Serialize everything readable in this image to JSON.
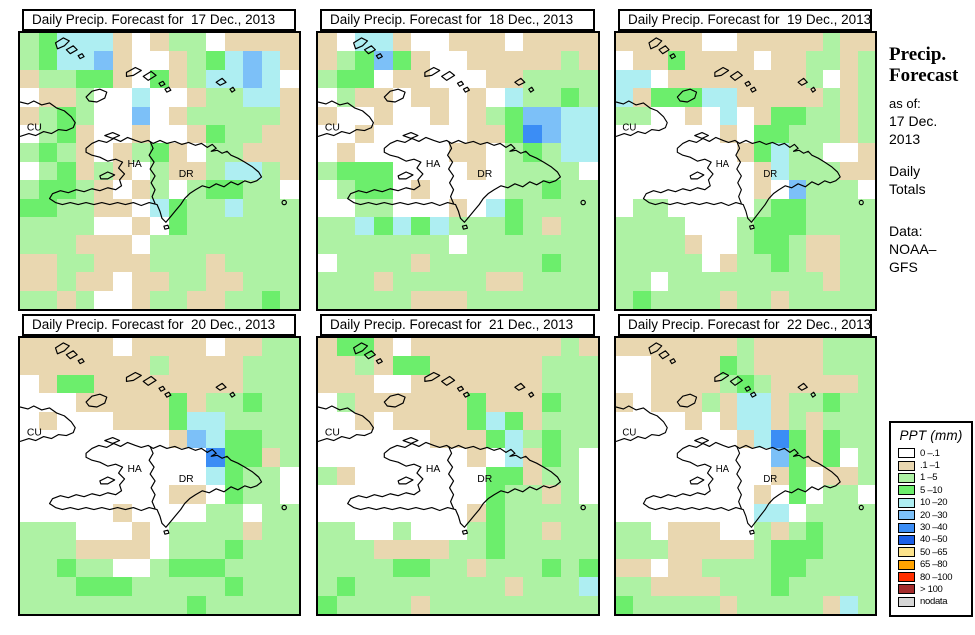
{
  "sidebar": {
    "title_line1": "Precip.",
    "title_line2": "Forecast",
    "as_of_label": "as of:",
    "as_of_date_line1": "17 Dec.",
    "as_of_date_line2": "2013",
    "totals_line1": "Daily",
    "totals_line2": "Totals",
    "data_label": "Data:",
    "data_source_line1": "NOAA–",
    "data_source_line2": "GFS"
  },
  "legend": {
    "title": "PPT (mm)",
    "entries": [
      {
        "label": "0 –.1",
        "color": "#ffffff"
      },
      {
        "label": ".1 –1",
        "color": "#e9d7b0"
      },
      {
        "label": "1 –5",
        "color": "#aef2a4"
      },
      {
        "label": "5 –10",
        "color": "#6cee6c"
      },
      {
        "label": "10 –20",
        "color": "#aeeef2"
      },
      {
        "label": "20 –30",
        "color": "#7cc0f8"
      },
      {
        "label": "30 –40",
        "color": "#3b8df5"
      },
      {
        "label": "40 –50",
        "color": "#1b5fe8"
      },
      {
        "label": "50 –65",
        "color": "#fce38c"
      },
      {
        "label": "65 –80",
        "color": "#ffa300"
      },
      {
        "label": "80 –100",
        "color": "#ff2f00"
      },
      {
        "label": "> 100",
        "color": "#a32b2b"
      },
      {
        "label": "nodata",
        "color": "#d6d6d6"
      }
    ]
  },
  "map_labels": {
    "cuba": "CU",
    "haiti": "HA",
    "dominican_republic": "DR"
  },
  "grid_colors": {
    "W": "#ffffff",
    "T": "#e9d7b0",
    "L": "#aef2a4",
    "G": "#6cee6c",
    "C": "#aeeef2",
    "A": "#7cc0f8",
    "B": "#3b8df5"
  },
  "panels": [
    {
      "title": "Daily Precip. Forecast for  17 Dec., 2013",
      "grid": [
        "LGCCCTWTLLWTTTT",
        "LGCCATWWTLGCACT",
        "TLLGGTWGTLCCACW",
        "WTTLWWCWWTLLCCT",
        "TLGLWWAWTLLLLLT",
        "WLGTWWTWWTGLLTT",
        "LGLTWTLGTWLLTTT",
        "WLGTLTWLTTLCCLT",
        "LGGLTWTLWLGGLLW",
        "GGLLTTWCGLLCLLL",
        "LLLLWWTWGLLLLLL",
        "LLLTTTWLLLLLLLL",
        "TTLLTTTLLLTLLLL",
        "TTLTTWTTLLTTLLL",
        "LLTLWWTLLTTLLGL"
      ]
    },
    {
      "title": "Daily Precip. Forecast for  18 Dec., 2013",
      "grid": [
        "TWCCTWWTTTWTTTT",
        "TLGAGTWWTTTTTLT",
        "LGGWTTWWWTTLLLL",
        "WLTTWTTWTWCLLGL",
        "TWWTWWTWTLGAACC",
        "WWTWWWWWTTGBACC",
        "WTWWWWWTTWLGLCC",
        "LGGGWWWWTWLLLLW",
        "WLGGWTWWWWLLGLL",
        "WWLLWWWTWCGLLLL",
        "LLCGCGCLLLGLTLL",
        "LLLLLLLWLLLLLLL",
        "WLLLLTLLLLLLGLL",
        "LLLTLLLLLTTLLLL",
        "LLLLLTTTLLLLLLL"
      ]
    },
    {
      "title": "Daily Precip. Forecast for  19 Dec., 2013",
      "grid": [
        "TTTTTWWTTTTTLTT",
        "WTTGTTTTWTTLLTL",
        "CCWTTTTTTTTLWTL",
        "CTGGGCCTTTTTLTL",
        "LLWWTWCWTGGLLTL",
        "WWWWWWTWGGLLLTL",
        "WWWWWWWTGCLLWWT",
        "WWWWWWWWTCLLLTT",
        "WWWWWWWWTWALLLW",
        "WLLWWWWWLGGLLLL",
        "LLLLWWWLGGGLLLL",
        "LLLLTWWLGGLTTLL",
        "LLLLLWTLLGLTTLL",
        "LLWLLLLLLLLLTLL",
        "LGLLLLTLLTLLLLL"
      ]
    },
    {
      "title": "Daily Precip. Forecast for  20 Dec., 2013",
      "grid": [
        "TTTTTWTTTTWTTLL",
        "TTTTTTTLTTTTLLL",
        "WTGGTTTTTTTTLLL",
        "WWWTTTTTGTLLGLL",
        "WTWWWTTTGCCLLLL",
        "WWWWWWWWTACGGLL",
        "WWWWWWWWWWBGGTL",
        "WWWWWWWWWWCGLLW",
        "WWWWWWWWTTWGLLW",
        "WWWWWTWWWWLLWLL",
        "LLLWWWTWLLLLTLL",
        "LLLTTTTWLLLGLLL",
        "LLGLLWWLGGGLLLL",
        "LLLGGGLLLLLGLLL",
        "LLLLLLLLLGLLLLL"
      ]
    },
    {
      "title": "Daily Precip. Forecast for  21 Dec., 2013",
      "grid": [
        "TGGTWTTTTTTTTLT",
        "TTLTGGTTTTTTLLL",
        "TTTWWTTTTTTTLLL",
        "WLTTTTTTGTTTGLL",
        "WWTWTTTTGCGTLLL",
        "WWWWWWTTTGCLGLL",
        "WWWWWWWWTWCTGLW",
        "LTWWWWWWWGGTLLW",
        "WWWWWWWWWGLLTLW",
        "WWWWWWWWTGLLLLL",
        "LLWWLWWWLGLLTLL",
        "LLLTTTTLLGLLLLL",
        "LLLLGGLLTLLLGLG",
        "LGLLLLLLLLTLLLC",
        "GLLLLTLLLLLLLLL"
      ]
    },
    {
      "title": "Daily Precip. Forecast for  22 Dec., 2013",
      "grid": [
        "TTTTTTTLTTTTLLL",
        "WWTTTTGLTTTTLLL",
        "WWTTTTLGLTTTTTL",
        "TWTTTLTCCTLLGLL",
        "WWWWTWTCCTLTLLL",
        "WWWWWWWTCBGTGLL",
        "WWWWWWWWWAGTGWL",
        "WWWWWWWWWTGWTTL",
        "WWWWWWWWTWGWLLW",
        "WWWWWWWWCCWLLLL",
        "LLWTTTWWLTLGLLL",
        "LLLTTTTTLGGGLLL",
        "TTWTTLLLLGGLLLL",
        "LLTTTTLLLGLLLLL",
        "GLLLLLTLLLLLTCL"
      ]
    }
  ]
}
